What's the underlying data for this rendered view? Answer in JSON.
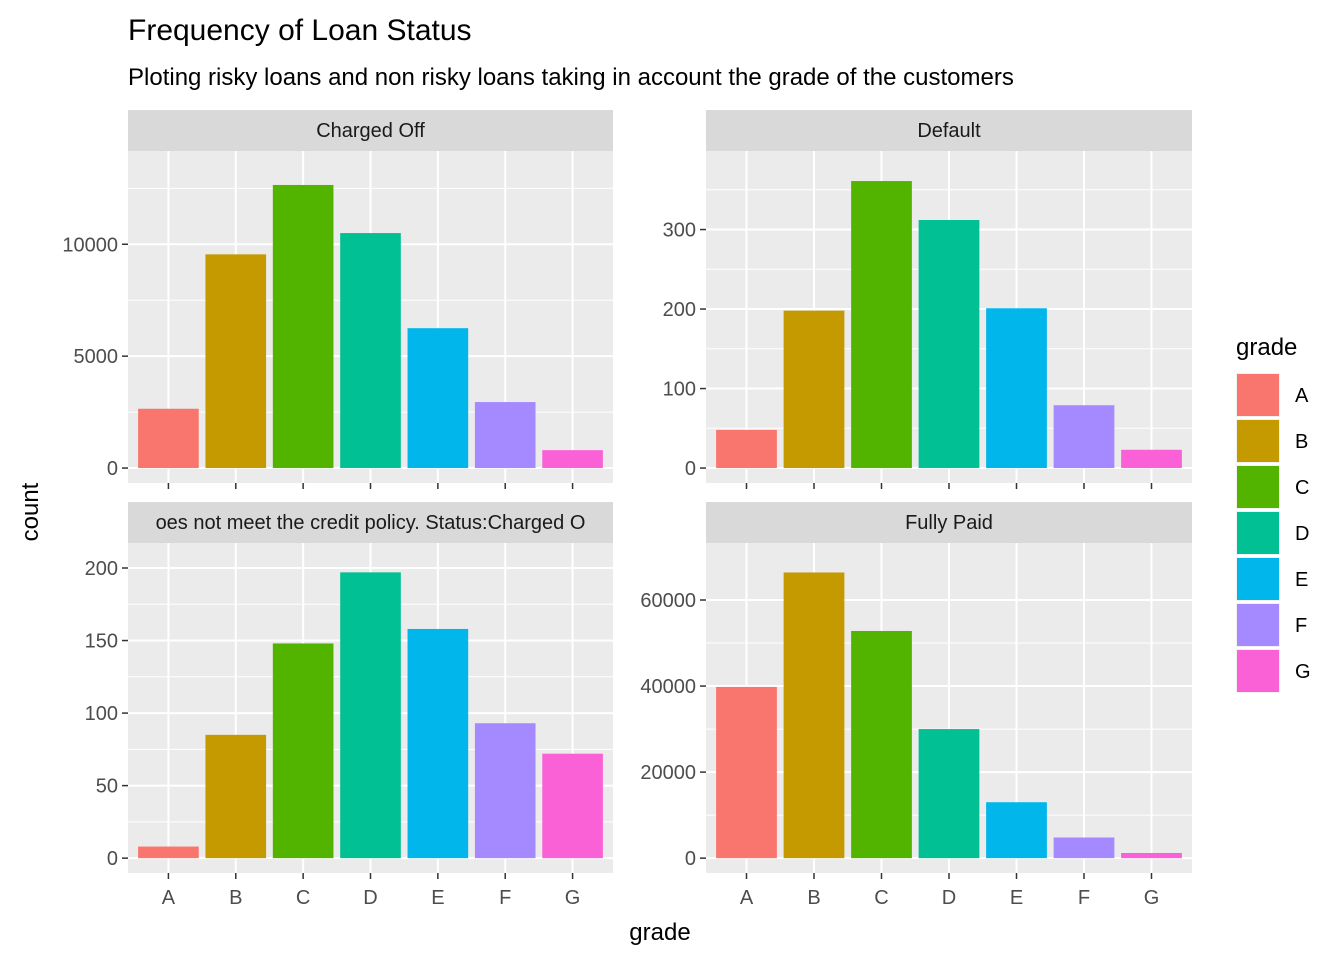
{
  "chart_data": {
    "type": "bar",
    "title": "Frequency of Loan Status",
    "subtitle": "Ploting risky loans and non risky loans taking in account the grade of the customers",
    "xlabel": "grade",
    "ylabel": "count",
    "categories": [
      "A",
      "B",
      "C",
      "D",
      "E",
      "F",
      "G"
    ],
    "colors": [
      "#F8766D",
      "#C49A00",
      "#53B400",
      "#00C094",
      "#00B6EB",
      "#A58AFF",
      "#FB61D7"
    ],
    "legend": {
      "title": "grade",
      "placement": "right",
      "items": [
        "A",
        "B",
        "C",
        "D",
        "E",
        "F",
        "G"
      ]
    },
    "grid": true,
    "facets": [
      {
        "label": "Charged Off",
        "values": [
          2650,
          9550,
          12650,
          10500,
          6250,
          2950,
          800
        ],
        "ylim": [
          0,
          13500
        ],
        "yticks": [
          0,
          5000,
          10000
        ],
        "ytick_labels": [
          "0",
          "5000",
          "10000"
        ]
      },
      {
        "label": "Default",
        "values": [
          48,
          198,
          361,
          312,
          201,
          79,
          23
        ],
        "ylim": [
          0,
          380
        ],
        "yticks": [
          0,
          100,
          200,
          300
        ],
        "ytick_labels": [
          "0",
          "100",
          "200",
          "300"
        ]
      },
      {
        "label": "Does not meet the credit policy. Status:Charged Off",
        "visible_label": "oes not meet the credit policy. Status:Charged O",
        "values": [
          8,
          85,
          148,
          197,
          158,
          93,
          72
        ],
        "ylim": [
          0,
          207
        ],
        "yticks": [
          0,
          50,
          100,
          150,
          200
        ],
        "ytick_labels": [
          "0",
          "50",
          "100",
          "150",
          "200"
        ]
      },
      {
        "label": "Fully Paid",
        "values": [
          39800,
          66400,
          52800,
          30000,
          13000,
          4800,
          1200
        ],
        "ylim": [
          0,
          69800
        ],
        "yticks": [
          0,
          20000,
          40000,
          60000
        ],
        "ytick_labels": [
          "0",
          "20000",
          "40000",
          "60000"
        ]
      }
    ]
  }
}
